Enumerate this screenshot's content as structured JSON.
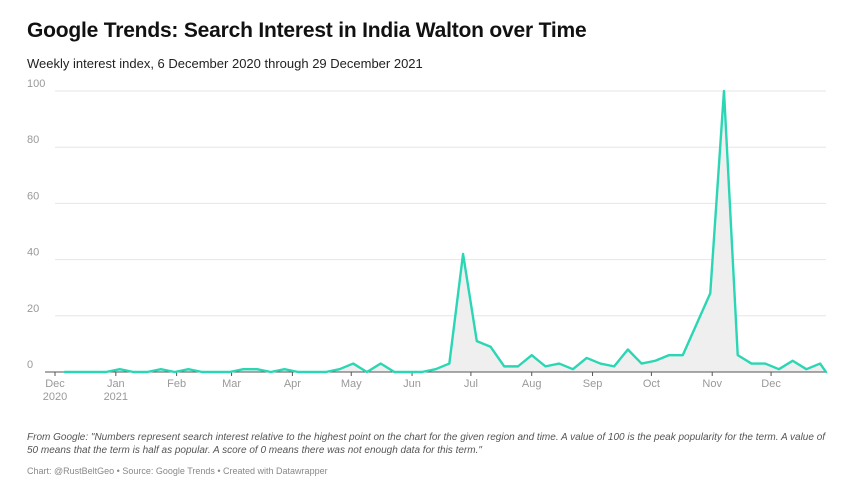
{
  "title": "Google Trends: Search Interest in India Walton over Time",
  "subtitle": "Weekly interest index, 6 December 2020 through 29 December 2021",
  "note": "From Google: \"Numbers represent search interest relative to the highest point on the chart for the given region and time. A value of 100 is the peak popularity for the term. A value of 50 means that the term is half as popular. A score of 0 means there was not enough data for this term.\"",
  "source": "Chart: @RustBeltGeo • Source: Google Trends • Created with Datawrapper",
  "colors": {
    "line": "#2bd6b4",
    "area": "#efefef",
    "grid": "#e6e6e6",
    "axis": "#555555"
  },
  "chart_data": {
    "type": "area",
    "title": "Google Trends: Search Interest in India Walton over Time",
    "subtitle": "Weekly interest index, 6 December 2020 through 29 December 2021",
    "xlabel": "",
    "ylabel": "",
    "ylim": [
      0,
      100
    ],
    "y_ticks": [
      0,
      20,
      40,
      60,
      80,
      100
    ],
    "x_ticks": [
      {
        "date": "2020-12-01",
        "label": [
          "Dec",
          "2020"
        ]
      },
      {
        "date": "2021-01-01",
        "label": [
          "Jan",
          "2021"
        ]
      },
      {
        "date": "2021-02-01",
        "label": [
          "Feb"
        ]
      },
      {
        "date": "2021-03-01",
        "label": [
          "Mar"
        ]
      },
      {
        "date": "2021-04-01",
        "label": [
          "Apr"
        ]
      },
      {
        "date": "2021-05-01",
        "label": [
          "May"
        ]
      },
      {
        "date": "2021-06-01",
        "label": [
          "Jun"
        ]
      },
      {
        "date": "2021-07-01",
        "label": [
          "Jul"
        ]
      },
      {
        "date": "2021-08-01",
        "label": [
          "Aug"
        ]
      },
      {
        "date": "2021-09-01",
        "label": [
          "Sep"
        ]
      },
      {
        "date": "2021-10-01",
        "label": [
          "Oct"
        ]
      },
      {
        "date": "2021-11-01",
        "label": [
          "Nov"
        ]
      },
      {
        "date": "2021-12-01",
        "label": [
          "Dec"
        ]
      }
    ],
    "x_range": [
      "2020-12-01",
      "2021-12-29"
    ],
    "grid": true,
    "series": [
      {
        "points": [
          [
            "2020-12-06",
            0
          ],
          [
            "2020-12-13",
            0
          ],
          [
            "2020-12-20",
            0
          ],
          [
            "2020-12-27",
            0
          ],
          [
            "2021-01-03",
            1
          ],
          [
            "2021-01-10",
            0
          ],
          [
            "2021-01-17",
            0
          ],
          [
            "2021-01-24",
            1
          ],
          [
            "2021-01-31",
            0
          ],
          [
            "2021-02-07",
            1
          ],
          [
            "2021-02-14",
            0
          ],
          [
            "2021-02-21",
            0
          ],
          [
            "2021-02-28",
            0
          ],
          [
            "2021-03-07",
            1
          ],
          [
            "2021-03-14",
            1
          ],
          [
            "2021-03-21",
            0
          ],
          [
            "2021-03-28",
            1
          ],
          [
            "2021-04-04",
            0
          ],
          [
            "2021-04-11",
            0
          ],
          [
            "2021-04-18",
            0
          ],
          [
            "2021-04-25",
            1
          ],
          [
            "2021-05-02",
            3
          ],
          [
            "2021-05-09",
            0
          ],
          [
            "2021-05-16",
            3
          ],
          [
            "2021-05-23",
            0
          ],
          [
            "2021-05-30",
            0
          ],
          [
            "2021-06-06",
            0
          ],
          [
            "2021-06-13",
            1
          ],
          [
            "2021-06-20",
            3
          ],
          [
            "2021-06-27",
            42
          ],
          [
            "2021-07-04",
            11
          ],
          [
            "2021-07-11",
            9
          ],
          [
            "2021-07-18",
            2
          ],
          [
            "2021-07-25",
            2
          ],
          [
            "2021-08-01",
            6
          ],
          [
            "2021-08-08",
            2
          ],
          [
            "2021-08-15",
            3
          ],
          [
            "2021-08-22",
            1
          ],
          [
            "2021-08-29",
            5
          ],
          [
            "2021-09-05",
            3
          ],
          [
            "2021-09-12",
            2
          ],
          [
            "2021-09-19",
            8
          ],
          [
            "2021-09-26",
            3
          ],
          [
            "2021-10-03",
            4
          ],
          [
            "2021-10-10",
            6
          ],
          [
            "2021-10-17",
            6
          ],
          [
            "2021-10-24",
            17
          ],
          [
            "2021-10-31",
            28
          ],
          [
            "2021-11-07",
            100
          ],
          [
            "2021-11-14",
            6
          ],
          [
            "2021-11-21",
            3
          ],
          [
            "2021-11-28",
            3
          ],
          [
            "2021-12-05",
            1
          ],
          [
            "2021-12-12",
            4
          ],
          [
            "2021-12-19",
            1
          ],
          [
            "2021-12-26",
            3
          ],
          [
            "2021-12-29",
            0
          ]
        ]
      }
    ]
  }
}
